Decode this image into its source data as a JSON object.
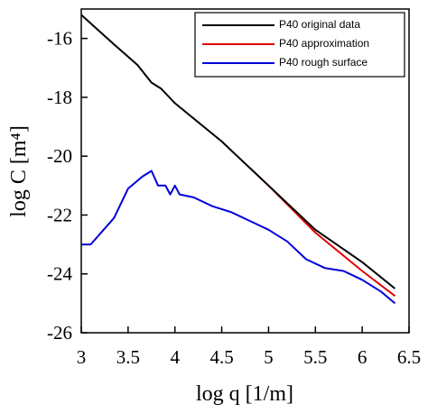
{
  "chart_data": {
    "type": "line",
    "xlabel": "log q [1/m]",
    "ylabel": "log C [m⁴]",
    "xlim": [
      3,
      6.5
    ],
    "ylim": [
      -26,
      -15
    ],
    "xticks": [
      3,
      3.5,
      4,
      4.5,
      5,
      5.5,
      6,
      6.5
    ],
    "yticks": [
      -26,
      -24,
      -22,
      -20,
      -18,
      -16
    ],
    "legend": "upper right",
    "series": [
      {
        "name": "P40 original data",
        "color": "#000000",
        "x": [
          3.0,
          3.35,
          3.6,
          3.75,
          3.85,
          4.0,
          4.5,
          5.0,
          5.5,
          6.0,
          6.35
        ],
        "values": [
          -15.2,
          -16.2,
          -16.9,
          -17.5,
          -17.7,
          -18.2,
          -19.5,
          -21.0,
          -22.5,
          -23.6,
          -24.5
        ]
      },
      {
        "name": "P40 approximation",
        "color": "#e00000",
        "x": [
          4.8,
          5.0,
          5.5,
          6.0,
          6.35
        ],
        "values": [
          -20.4,
          -21.0,
          -22.6,
          -23.9,
          -24.75
        ]
      },
      {
        "name": "P40 rough surface",
        "color": "#0000dd",
        "x": [
          3.0,
          3.1,
          3.35,
          3.5,
          3.65,
          3.75,
          3.82,
          3.9,
          3.95,
          4.0,
          4.05,
          4.2,
          4.4,
          4.6,
          4.8,
          5.0,
          5.2,
          5.4,
          5.6,
          5.8,
          6.0,
          6.2,
          6.35
        ],
        "values": [
          -23.0,
          -23.0,
          -22.1,
          -21.1,
          -20.7,
          -20.5,
          -21.0,
          -21.0,
          -21.3,
          -21.0,
          -21.3,
          -21.4,
          -21.7,
          -21.9,
          -22.2,
          -22.5,
          -22.9,
          -23.5,
          -23.8,
          -23.9,
          -24.2,
          -24.6,
          -25.0
        ]
      }
    ]
  }
}
